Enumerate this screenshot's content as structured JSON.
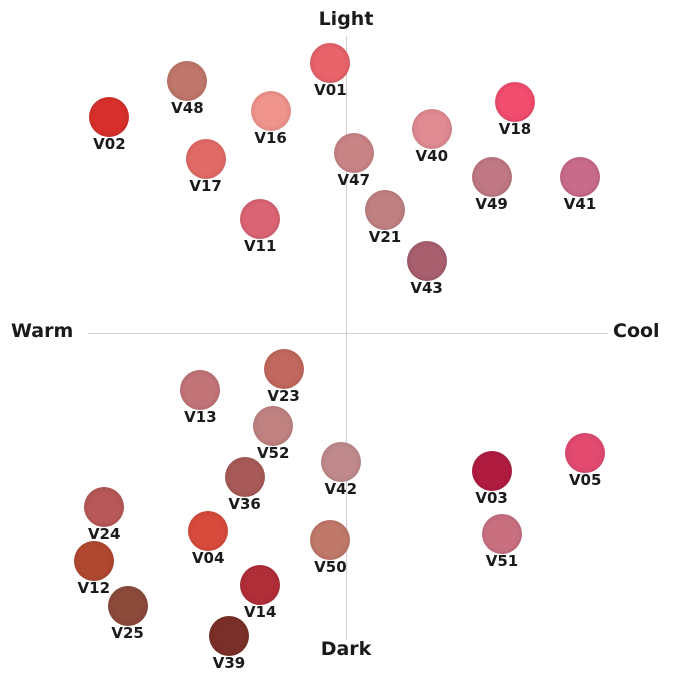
{
  "axes": {
    "top": "Light",
    "bottom": "Dark",
    "left": "Warm",
    "right": "Cool"
  },
  "chart_data": {
    "type": "scatter",
    "xlabel_negative": "Warm",
    "xlabel_positive": "Cool",
    "ylabel_positive": "Light",
    "ylabel_negative": "Dark",
    "xlim": [
      -10,
      10
    ],
    "ylim": [
      -10,
      10
    ],
    "grid": false,
    "points": [
      {
        "label": "V01",
        "x": -0.6,
        "y": 9.0,
        "color": "#e8636a"
      },
      {
        "label": "V48",
        "x": -6.1,
        "y": 8.4,
        "color": "#c0766a"
      },
      {
        "label": "V02",
        "x": -9.1,
        "y": 7.2,
        "color": "#d8302c"
      },
      {
        "label": "V16",
        "x": -2.9,
        "y": 7.4,
        "color": "#f0948c"
      },
      {
        "label": "V18",
        "x": 6.5,
        "y": 7.7,
        "color": "#f24c6e"
      },
      {
        "label": "V17",
        "x": -5.4,
        "y": 5.8,
        "color": "#e26a66"
      },
      {
        "label": "V47",
        "x": 0.3,
        "y": 6.0,
        "color": "#c98486"
      },
      {
        "label": "V40",
        "x": 3.3,
        "y": 6.8,
        "color": "#e08a92"
      },
      {
        "label": "V49",
        "x": 5.6,
        "y": 5.2,
        "color": "#c07884"
      },
      {
        "label": "V41",
        "x": 9.0,
        "y": 5.2,
        "color": "#c86a8a"
      },
      {
        "label": "V11",
        "x": -3.3,
        "y": 3.8,
        "color": "#da6474"
      },
      {
        "label": "V21",
        "x": 1.5,
        "y": 4.1,
        "color": "#c08082"
      },
      {
        "label": "V43",
        "x": 3.1,
        "y": 2.4,
        "color": "#a85f6e"
      },
      {
        "label": "V23",
        "x": -2.4,
        "y": -1.2,
        "color": "#c2685e"
      },
      {
        "label": "V13",
        "x": -5.6,
        "y": -1.9,
        "color": "#c27478"
      },
      {
        "label": "V52",
        "x": -2.8,
        "y": -3.1,
        "color": "#c08280"
      },
      {
        "label": "V36",
        "x": -3.9,
        "y": -4.8,
        "color": "#a85a58"
      },
      {
        "label": "V42",
        "x": -0.2,
        "y": -4.3,
        "color": "#c08a8c"
      },
      {
        "label": "V03",
        "x": 5.6,
        "y": -4.6,
        "color": "#b01c40"
      },
      {
        "label": "V05",
        "x": 9.2,
        "y": -4.0,
        "color": "#e24a70"
      },
      {
        "label": "V24",
        "x": -9.3,
        "y": -5.8,
        "color": "#b85858"
      },
      {
        "label": "V04",
        "x": -5.3,
        "y": -6.6,
        "color": "#d84a3c"
      },
      {
        "label": "V51",
        "x": 6.0,
        "y": -6.7,
        "color": "#c87080"
      },
      {
        "label": "V50",
        "x": -0.6,
        "y": -6.9,
        "color": "#c07868"
      },
      {
        "label": "V12",
        "x": -9.7,
        "y": -7.6,
        "color": "#b04830"
      },
      {
        "label": "V14",
        "x": -3.3,
        "y": -8.4,
        "color": "#b02e38"
      },
      {
        "label": "V25",
        "x": -8.4,
        "y": -9.1,
        "color": "#8c4a3a"
      },
      {
        "label": "V39",
        "x": -4.5,
        "y": -10.1,
        "color": "#7a3028"
      }
    ]
  }
}
